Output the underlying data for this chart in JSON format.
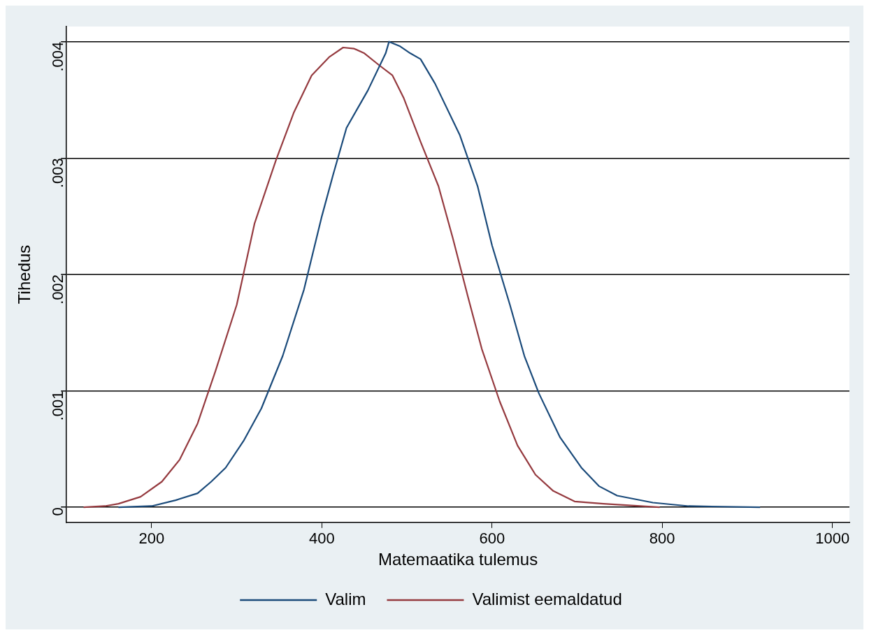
{
  "chart_data": {
    "type": "line",
    "xlabel": "Matemaatika tulemus",
    "ylabel": "Tihedus",
    "xlim": [
      100,
      1020
    ],
    "ylim": [
      -0.00013,
      0.00413
    ],
    "xticks": [
      200,
      400,
      600,
      800,
      1000
    ],
    "yticks": [
      {
        "value": 0,
        "label": "0"
      },
      {
        "value": 0.001,
        "label": ".001"
      },
      {
        "value": 0.002,
        "label": ".002"
      },
      {
        "value": 0.003,
        "label": ".003"
      },
      {
        "value": 0.004,
        "label": ".004"
      }
    ],
    "grid": "y",
    "legend": "bottom",
    "marker": "none",
    "line_style": "solid",
    "series": [
      {
        "name": "Valim",
        "color": "#1a4a7a",
        "x": [
          161,
          200,
          228,
          254,
          270,
          287,
          308,
          329,
          354,
          379,
          400,
          413,
          429,
          454,
          475,
          479,
          492,
          504,
          516,
          533,
          562,
          583,
          600,
          621,
          638,
          655,
          680,
          705,
          726,
          747,
          789,
          831,
          915
        ],
        "values": [
          0,
          1e-05,
          6e-05,
          0.00012,
          0.00022,
          0.00034,
          0.00057,
          0.00085,
          0.0013,
          0.00187,
          0.0025,
          0.00285,
          0.00326,
          0.00358,
          0.0039,
          0.004,
          0.00396,
          0.0039,
          0.00385,
          0.00364,
          0.0032,
          0.00276,
          0.00225,
          0.00174,
          0.0013,
          0.00098,
          0.0006,
          0.00034,
          0.00018,
          0.0001,
          4e-05,
          1e-05,
          0
        ]
      },
      {
        "name": "Valimist eemaldatud",
        "color": "#953a3f",
        "x": [
          120,
          145,
          161,
          187,
          212,
          233,
          254,
          275,
          300,
          321,
          346,
          367,
          388,
          409,
          425,
          438,
          450,
          467,
          483,
          496,
          516,
          537,
          554,
          572,
          588,
          609,
          630,
          651,
          672,
          697,
          731,
          797
        ],
        "values": [
          0,
          1e-05,
          3e-05,
          9e-05,
          0.00022,
          0.00041,
          0.00072,
          0.00117,
          0.00174,
          0.00244,
          0.00298,
          0.00339,
          0.00371,
          0.00387,
          0.00395,
          0.00394,
          0.0039,
          0.0038,
          0.00371,
          0.00352,
          0.00314,
          0.00276,
          0.00231,
          0.0018,
          0.00136,
          0.00091,
          0.00053,
          0.00028,
          0.00014,
          5e-05,
          3e-05,
          0
        ]
      }
    ]
  }
}
